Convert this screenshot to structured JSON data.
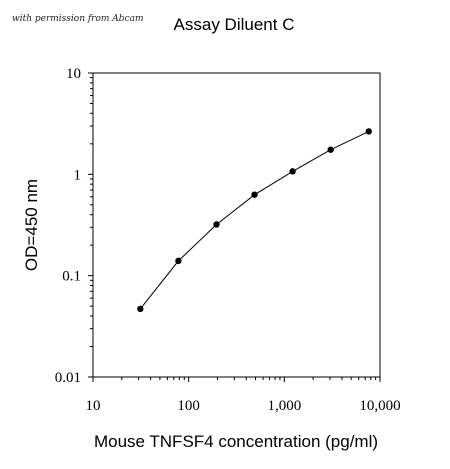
{
  "credit": "with permission from Abcam",
  "chart_data": {
    "type": "line",
    "title": "Assay Diluent C",
    "xlabel": "Mouse TNFSF4 concentration (pg/ml)",
    "ylabel": "OD=450 nm",
    "x_scale": "log",
    "y_scale": "log",
    "xlim": [
      10,
      10000
    ],
    "ylim": [
      0.01,
      10
    ],
    "x_ticks": [
      10,
      100,
      1000,
      10000
    ],
    "x_tick_labels": [
      "10",
      "100",
      "1,000",
      "10,000"
    ],
    "y_ticks": [
      0.01,
      0.1,
      1,
      10
    ],
    "y_tick_labels": [
      "0.01",
      "0.1",
      "1",
      "10"
    ],
    "grid": false,
    "series": [
      {
        "x": [
          31.25,
          78.1,
          195.3,
          488.3,
          1220.7,
          3051.8,
          7629.4
        ],
        "y": [
          0.047,
          0.14,
          0.32,
          0.63,
          1.07,
          1.75,
          2.65
        ],
        "color": "#000000"
      }
    ]
  }
}
